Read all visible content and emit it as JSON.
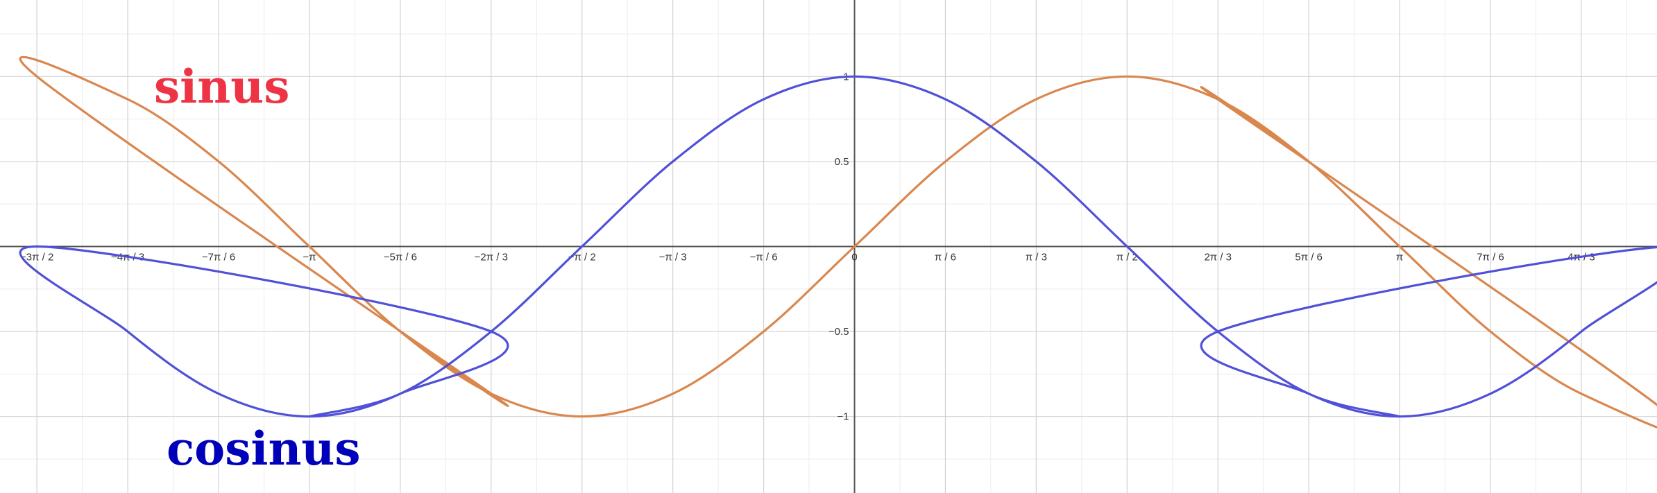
{
  "chart_data": {
    "type": "line",
    "title": "",
    "xlabel": "",
    "ylabel": "",
    "xlim": [
      -4.925,
      4.625
    ],
    "ylim": [
      -1.45,
      1.45
    ],
    "grid": true,
    "x_ticks": [
      {
        "value": -4.712389,
        "label": "−3π / 2"
      },
      {
        "value": -4.18879,
        "label": "−4π / 3"
      },
      {
        "value": -3.665191,
        "label": "−7π / 6"
      },
      {
        "value": -3.141593,
        "label": "−π"
      },
      {
        "value": -2.617994,
        "label": "−5π / 6"
      },
      {
        "value": -2.094395,
        "label": "−2π / 3"
      },
      {
        "value": -1.570796,
        "label": "−π / 2"
      },
      {
        "value": -1.047198,
        "label": "−π / 3"
      },
      {
        "value": -0.523599,
        "label": "−π / 6"
      },
      {
        "value": 0,
        "label": "0"
      },
      {
        "value": 0.523599,
        "label": "π / 6"
      },
      {
        "value": 1.047198,
        "label": "π / 3"
      },
      {
        "value": 1.570796,
        "label": "π / 2"
      },
      {
        "value": 2.094395,
        "label": "2π / 3"
      },
      {
        "value": 2.617994,
        "label": "5π / 6"
      },
      {
        "value": 3.141593,
        "label": "π"
      },
      {
        "value": 3.665191,
        "label": "7π / 6"
      },
      {
        "value": 4.18879,
        "label": "4π / 3"
      },
      {
        "value": 4.712389,
        "label": "3π / 2"
      }
    ],
    "y_ticks": [
      {
        "value": 1,
        "label": "1"
      },
      {
        "value": 0.5,
        "label": "0.5"
      },
      {
        "value": -0.5,
        "label": "−0.5"
      },
      {
        "value": -1,
        "label": "−1"
      }
    ],
    "series": [
      {
        "name": "sinus",
        "color": "#d9874e",
        "label_color": "#ee3344",
        "x": [
          -4.712,
          -4.189,
          -3.665,
          -3.142,
          -2.618,
          -2.094,
          -1.571,
          -1.047,
          -0.524,
          0,
          0.524,
          1.047,
          1.571,
          2.094,
          2.618,
          3.142,
          3.665,
          4.189,
          4.712
        ],
        "y": [
          1,
          0.866,
          0.5,
          0,
          -0.5,
          -0.866,
          -1,
          -0.866,
          -0.5,
          0,
          0.5,
          0.866,
          1,
          0.866,
          0.5,
          0,
          -0.5,
          -0.866,
          -1
        ]
      },
      {
        "name": "cosinus",
        "color": "#5050d8",
        "label_color": "#0000bb",
        "x": [
          -4.712,
          -4.189,
          -3.665,
          -3.142,
          -2.618,
          -2.094,
          -1.571,
          -1.047,
          -0.524,
          0,
          0.524,
          1.047,
          1.571,
          2.094,
          2.618,
          3.142,
          3.665,
          4.189,
          4.712
        ],
        "y": [
          0,
          -0.5,
          -0.866,
          -1,
          -0.866,
          -0.5,
          0,
          0.5,
          0.866,
          1,
          0.866,
          0.5,
          0,
          -0.5,
          -0.866,
          -1,
          -0.866,
          -0.5,
          0
        ]
      }
    ]
  }
}
